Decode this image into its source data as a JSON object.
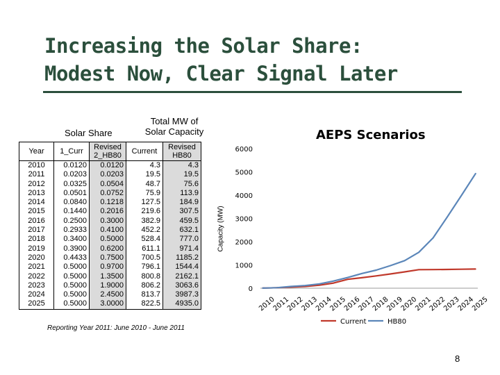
{
  "slide": {
    "title_line1": "Increasing the Solar Share:",
    "title_line2": "Modest Now, Clear Signal Later",
    "footnote": "Reporting Year 2011: June 2010 - June 2011",
    "page_number": "8"
  },
  "table": {
    "group_solar_share": "Solar Share",
    "group_total_mw_line1": "Total MW of",
    "group_total_mw_line2": "Solar Capacity",
    "headers": {
      "year": "Year",
      "curr": "1_Curr",
      "rev_hb80_line1": "Revised",
      "rev_hb80_line2": "2_HB80",
      "current": "Current",
      "rev_hb80b_line1": "Revised",
      "rev_hb80b_line2": "HB80"
    },
    "rows": [
      [
        "2010",
        "0.0120",
        "0.0120",
        "4.3",
        "4.3"
      ],
      [
        "2011",
        "0.0203",
        "0.0203",
        "19.5",
        "19.5"
      ],
      [
        "2012",
        "0.0325",
        "0.0504",
        "48.7",
        "75.6"
      ],
      [
        "2013",
        "0.0501",
        "0.0752",
        "75.9",
        "113.9"
      ],
      [
        "2014",
        "0.0840",
        "0.1218",
        "127.5",
        "184.9"
      ],
      [
        "2015",
        "0.1440",
        "0.2016",
        "219.6",
        "307.5"
      ],
      [
        "2016",
        "0.2500",
        "0.3000",
        "382.9",
        "459.5"
      ],
      [
        "2017",
        "0.2933",
        "0.4100",
        "452.2",
        "632.1"
      ],
      [
        "2018",
        "0.3400",
        "0.5000",
        "528.4",
        "777.0"
      ],
      [
        "2019",
        "0.3900",
        "0.6200",
        "611.1",
        "971.4"
      ],
      [
        "2020",
        "0.4433",
        "0.7500",
        "700.5",
        "1185.2"
      ],
      [
        "2021",
        "0.5000",
        "0.9700",
        "796.1",
        "1544.4"
      ],
      [
        "2022",
        "0.5000",
        "1.3500",
        "800.8",
        "2162.1"
      ],
      [
        "2023",
        "0.5000",
        "1.9000",
        "806.2",
        "3063.6"
      ],
      [
        "2024",
        "0.5000",
        "2.4500",
        "813.7",
        "3987.3"
      ],
      [
        "2025",
        "0.5000",
        "3.0000",
        "822.5",
        "4935.0"
      ]
    ]
  },
  "chart_data": {
    "type": "line",
    "title": "AEPS Scenarios",
    "ylabel": "Capacity (MW)",
    "xlabel": "",
    "ylim": [
      0,
      6000
    ],
    "yticks": [
      0,
      1000,
      2000,
      3000,
      4000,
      5000,
      6000
    ],
    "grid": false,
    "legend": "bottom",
    "categories": [
      "2010",
      "2011",
      "2012",
      "2013",
      "2014",
      "2015",
      "2016",
      "2017",
      "2018",
      "2019",
      "2020",
      "2021",
      "2022",
      "2023",
      "2024",
      "2025"
    ],
    "series": [
      {
        "name": "Current",
        "color": "#c0392b",
        "values": [
          4.3,
          19.5,
          48.7,
          75.9,
          127.5,
          219.6,
          382.9,
          452.2,
          528.4,
          611.1,
          700.5,
          796.1,
          800.8,
          806.2,
          813.7,
          822.5
        ]
      },
      {
        "name": "HB80",
        "color": "#5b86b9",
        "values": [
          4.3,
          19.5,
          75.6,
          113.9,
          184.9,
          307.5,
          459.5,
          632.1,
          777.0,
          971.4,
          1185.2,
          1544.4,
          2162.1,
          3063.6,
          3987.3,
          4935.0
        ]
      }
    ]
  }
}
